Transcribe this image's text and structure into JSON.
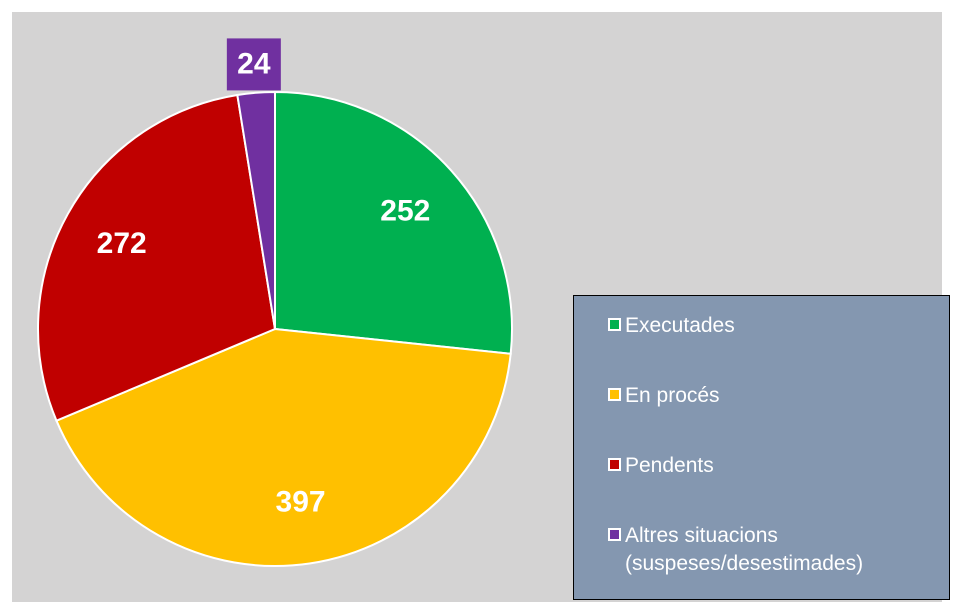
{
  "chart_data": {
    "type": "pie",
    "categories": [
      "Executades",
      "En procés",
      "Pendents",
      "Altres situacions (suspeses/desestimades)"
    ],
    "values": [
      252,
      397,
      272,
      24
    ],
    "colors": [
      "#00b050",
      "#ffc000",
      "#c00000",
      "#7030a0"
    ],
    "legend": "right"
  }
}
